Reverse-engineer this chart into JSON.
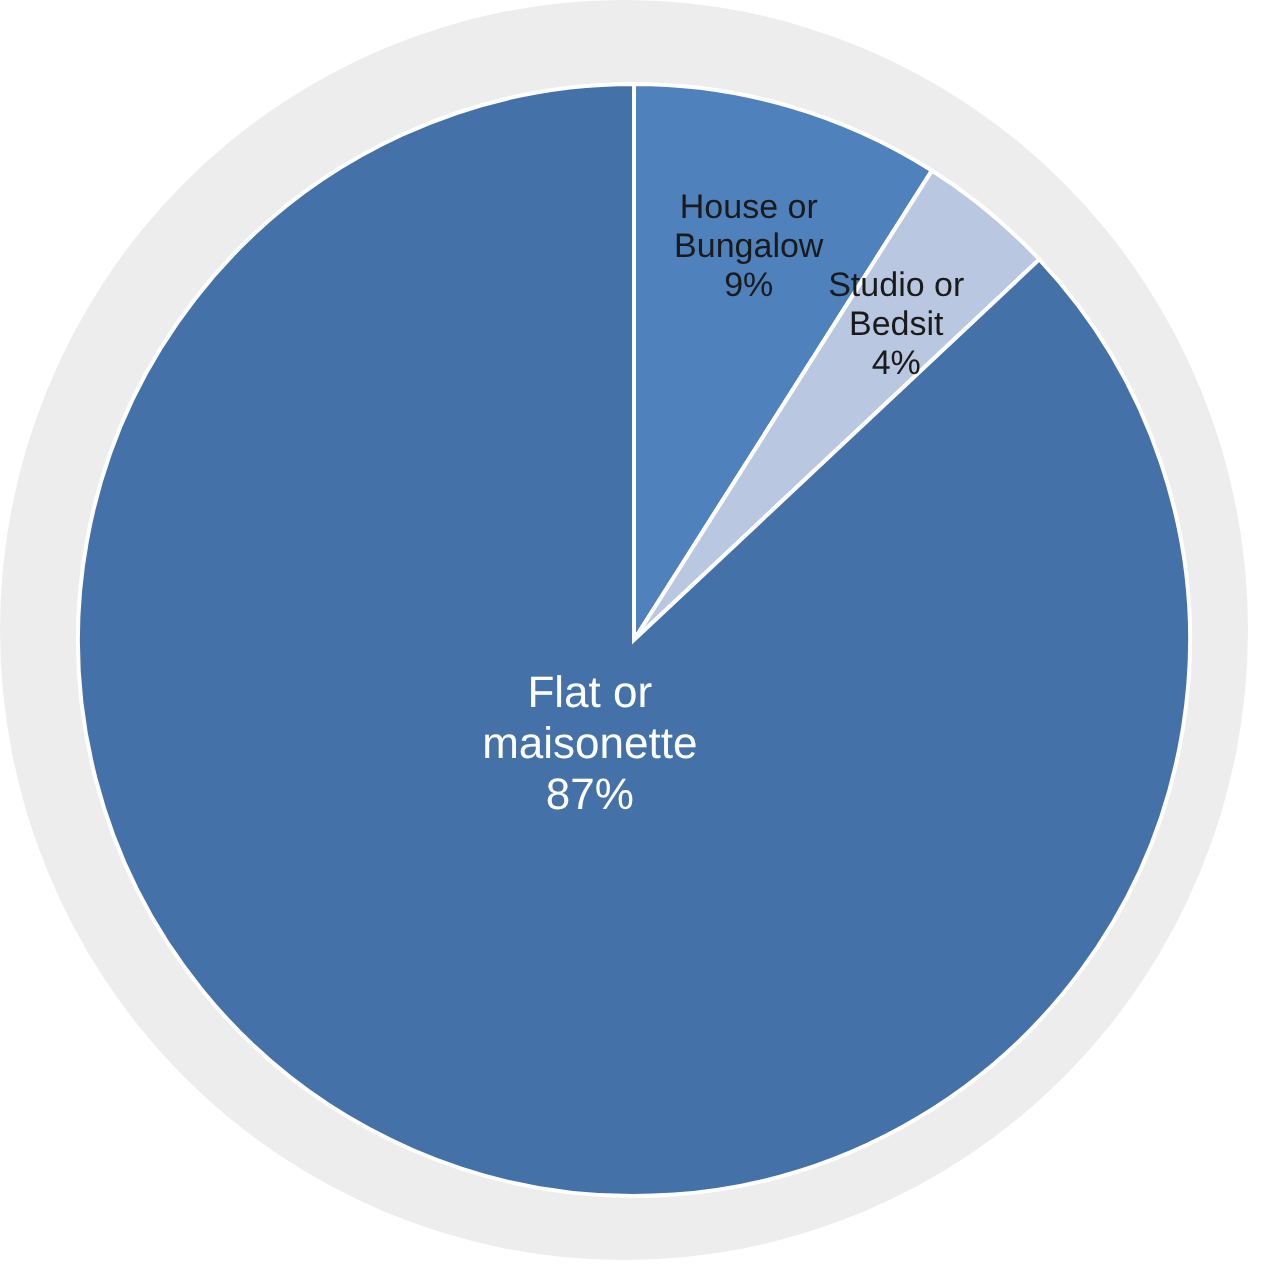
{
  "chart_data": {
    "type": "pie",
    "categories": [
      "House or Bungalow",
      "Studio or Bedsit",
      "Flat or maisonette"
    ],
    "values": [
      9,
      4,
      87
    ],
    "colors": [
      "#4f81bd",
      "#b9c7e0",
      "#4472a8"
    ],
    "value_labels": [
      "9%",
      "4%",
      "87%"
    ],
    "legend": false
  }
}
